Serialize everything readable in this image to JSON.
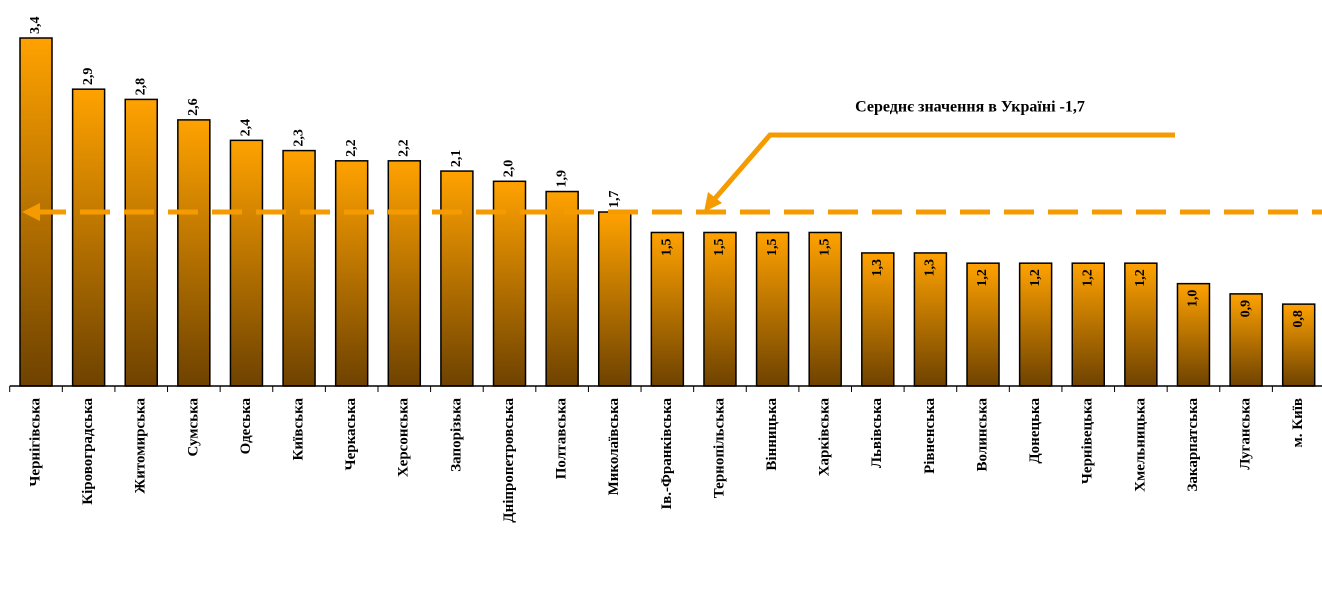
{
  "chart_data": {
    "type": "bar",
    "categories": [
      "Чернігівська",
      "Кіровоградська",
      "Житомирська",
      "Сумська",
      "Одеська",
      "Київська",
      "Черкаська",
      "Херсонська",
      "Запорізька",
      "Дніпропетровська",
      "Полтавська",
      "Миколаївська",
      "Ів.-Франківська",
      "Тернопільська",
      "Вінницька",
      "Харківська",
      "Львівська",
      "Рівненська",
      "Волинська",
      "Донецька",
      "Чернівецька",
      "Хмельницька",
      "Закарпатська",
      "Луганська",
      "м. Київ"
    ],
    "values": [
      3.4,
      2.9,
      2.8,
      2.6,
      2.4,
      2.3,
      2.2,
      2.2,
      2.1,
      2.0,
      1.9,
      1.7,
      1.5,
      1.5,
      1.5,
      1.5,
      1.3,
      1.3,
      1.2,
      1.2,
      1.2,
      1.2,
      1.0,
      0.9,
      0.8
    ],
    "value_labels": [
      "3,4",
      "2,9",
      "2,8",
      "2,6",
      "2,4",
      "2,3",
      "2,2",
      "2,2",
      "2,1",
      "2,0",
      "1,9",
      "1,7",
      "1,5",
      "1,5",
      "1,5",
      "1,5",
      "1,3",
      "1,3",
      "1,2",
      "1,2",
      "1,2",
      "1,2",
      "1,0",
      "0,9",
      "0,8"
    ],
    "color": "#ffa200",
    "ylim": [
      0,
      3.4
    ],
    "average": {
      "value": 1.7,
      "label": "Середнє значення в Україні -1,7",
      "color": "#f59b00"
    }
  }
}
